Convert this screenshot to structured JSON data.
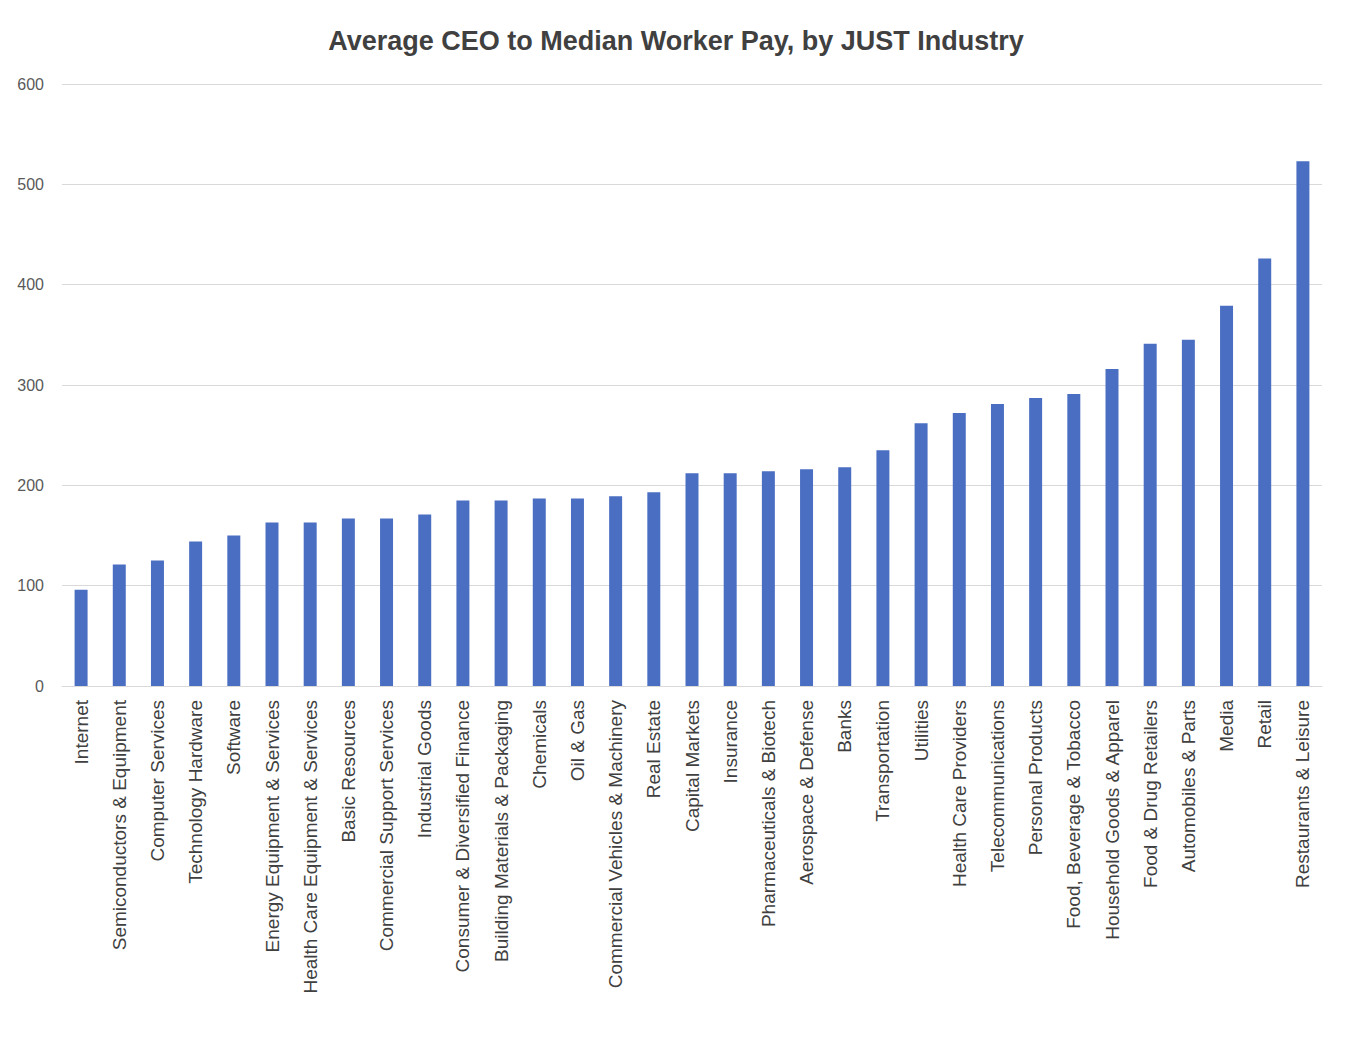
{
  "chart_data": {
    "type": "bar",
    "title": "Average CEO to Median Worker Pay, by JUST Industry",
    "categories": [
      "Internet",
      "Semiconductors & Equipment",
      "Computer Services",
      "Technology Hardware",
      "Software",
      "Energy Equipment & Services",
      "Health Care Equipment & Services",
      "Basic Resources",
      "Commercial Support Services",
      "Industrial Goods",
      "Consumer & Diversified Finance",
      "Building Materials & Packaging",
      "Chemicals",
      "Oil & Gas",
      "Commercial Vehicles & Machinery",
      "Real Estate",
      "Capital Markets",
      "Insurance",
      "Pharmaceuticals & Biotech",
      "Aerospace & Defense",
      "Banks",
      "Transportation",
      "Utilities",
      "Health Care Providers",
      "Telecommunications",
      "Personal Products",
      "Food, Beverage & Tobacco",
      "Household Goods & Apparel",
      "Food & Drug Retailers",
      "Automobiles & Parts",
      "Media",
      "Retail",
      "Restaurants & Leisure"
    ],
    "values": [
      96,
      121,
      125,
      144,
      150,
      163,
      163,
      167,
      167,
      171,
      185,
      185,
      187,
      187,
      189,
      193,
      212,
      212,
      214,
      216,
      218,
      235,
      262,
      272,
      281,
      287,
      291,
      316,
      341,
      345,
      379,
      426,
      523
    ],
    "color": "#4a6ec2",
    "ylim": [
      0,
      600
    ],
    "yticks": [
      0,
      100,
      200,
      300,
      400,
      500,
      600
    ],
    "grid": true
  }
}
